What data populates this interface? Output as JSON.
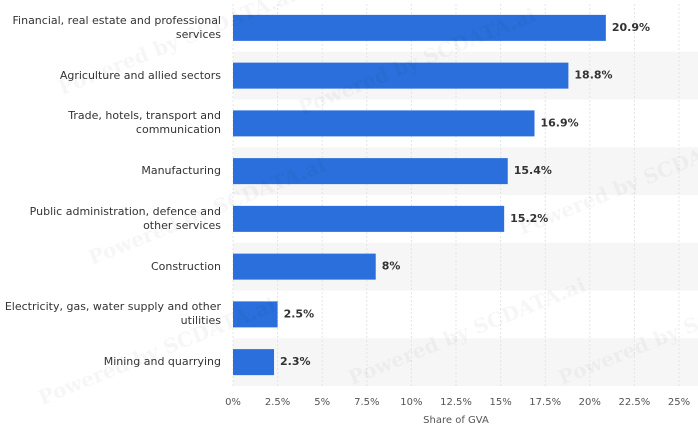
{
  "chart_data": {
    "type": "bar",
    "orientation": "horizontal",
    "categories": [
      "Financial, real estate and professional services",
      "Agriculture and allied sectors",
      "Trade, hotels, transport and communication",
      "Manufacturing",
      "Public administration, defence and other services",
      "Construction",
      "Electricity, gas, water supply and other utilities",
      "Mining and quarrying"
    ],
    "values": [
      20.9,
      18.8,
      16.9,
      15.4,
      15.2,
      8,
      2.5,
      2.3
    ],
    "value_labels": [
      "20.9%",
      "18.8%",
      "16.9%",
      "15.4%",
      "15.2%",
      "8%",
      "2.5%",
      "2.3%"
    ],
    "color": "#2a6fdb",
    "xlabel": "Share of GVA",
    "xlim": [
      0,
      25
    ],
    "xticks": [
      {
        "value": 0,
        "label": "0%"
      },
      {
        "value": 2.5,
        "label": "2.5%"
      },
      {
        "value": 5,
        "label": "5%"
      },
      {
        "value": 7.5,
        "label": "7.5%"
      },
      {
        "value": 10,
        "label": "10%"
      },
      {
        "value": 12.5,
        "label": "12.5%"
      },
      {
        "value": 15,
        "label": "15%"
      },
      {
        "value": 17.5,
        "label": "17.5%"
      },
      {
        "value": 20,
        "label": "20%"
      },
      {
        "value": 22.5,
        "label": "22.5%"
      },
      {
        "value": 25,
        "label": "25%"
      }
    ],
    "grid": true,
    "watermark": "Powered by SCDATA.ai"
  }
}
